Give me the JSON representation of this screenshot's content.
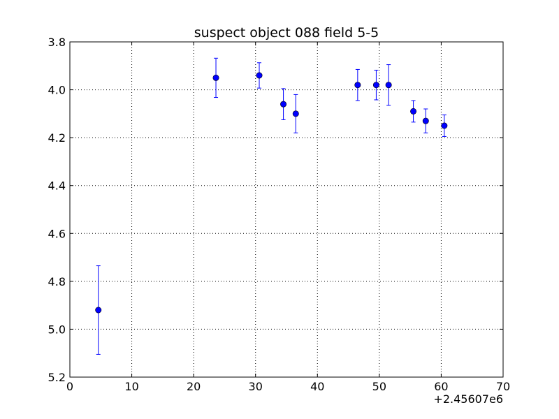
{
  "chart_data": {
    "type": "scatter",
    "title": "suspect object 088 field 5-5",
    "xlabel": "",
    "ylabel": "",
    "x_offset_label": "+2.45607e6",
    "xlim": [
      0,
      70
    ],
    "ylim": [
      5.2,
      3.8
    ],
    "y_inverted": true,
    "grid": true,
    "x_ticks": [
      0,
      10,
      20,
      30,
      40,
      50,
      60,
      70
    ],
    "x_tick_labels": [
      "0",
      "10",
      "20",
      "30",
      "40",
      "50",
      "60",
      "70"
    ],
    "y_ticks": [
      3.8,
      4.0,
      4.2,
      4.4,
      4.6,
      4.8,
      5.0,
      5.2
    ],
    "y_tick_labels": [
      "3.8",
      "4.0",
      "4.2",
      "4.4",
      "4.6",
      "4.8",
      "5.0",
      "5.2"
    ],
    "series": [
      {
        "color": "#0000ff",
        "marker": "circle",
        "points": [
          {
            "x": 4.6,
            "y": 4.92,
            "err": 0.185
          },
          {
            "x": 23.6,
            "y": 3.95,
            "err": 0.082
          },
          {
            "x": 30.6,
            "y": 3.94,
            "err": 0.053
          },
          {
            "x": 34.5,
            "y": 4.06,
            "err": 0.065
          },
          {
            "x": 36.5,
            "y": 4.1,
            "err": 0.08
          },
          {
            "x": 46.5,
            "y": 3.98,
            "err": 0.065
          },
          {
            "x": 49.5,
            "y": 3.98,
            "err": 0.062
          },
          {
            "x": 51.5,
            "y": 3.98,
            "err": 0.085
          },
          {
            "x": 55.5,
            "y": 4.09,
            "err": 0.045
          },
          {
            "x": 57.5,
            "y": 4.13,
            "err": 0.05
          },
          {
            "x": 60.5,
            "y": 4.15,
            "err": 0.045
          }
        ]
      }
    ]
  }
}
